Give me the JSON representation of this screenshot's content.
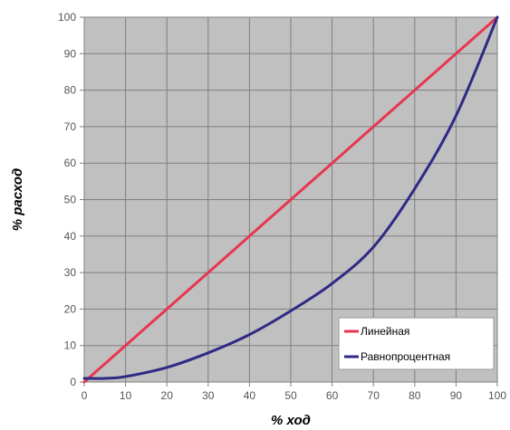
{
  "chart_data": {
    "type": "line",
    "xlabel": "% ход",
    "ylabel": "% расход",
    "xlim": [
      0,
      100
    ],
    "ylim": [
      0,
      100
    ],
    "x_ticks": [
      0,
      10,
      20,
      30,
      40,
      50,
      60,
      70,
      80,
      90,
      100
    ],
    "y_ticks": [
      0,
      10,
      20,
      30,
      40,
      50,
      60,
      70,
      80,
      90,
      100
    ],
    "grid": true,
    "legend_position": "bottom-right",
    "series": [
      {
        "name": "Линейная",
        "color": "#e8364f",
        "x": [
          0,
          10,
          20,
          30,
          40,
          50,
          60,
          70,
          80,
          90,
          100
        ],
        "y": [
          0,
          10,
          20,
          30,
          40,
          50,
          60,
          70,
          80,
          90,
          100
        ]
      },
      {
        "name": "Равнопроцентная",
        "color": "#2e2a86",
        "x": [
          0,
          5,
          10,
          20,
          30,
          40,
          50,
          60,
          70,
          80,
          90,
          100
        ],
        "y": [
          1,
          1,
          1.5,
          4,
          8,
          13,
          19.5,
          27,
          37,
          53,
          73,
          100
        ]
      }
    ]
  },
  "colors": {
    "plot_background": "#c0c0c0",
    "grid": "#7f7f7f"
  }
}
